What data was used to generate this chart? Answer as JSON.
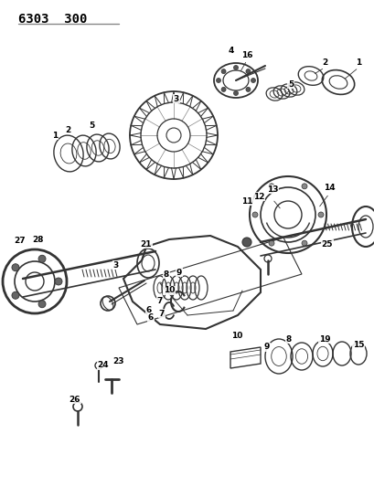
{
  "title": "6303  300",
  "bg_color": "#ffffff",
  "fig_width": 4.1,
  "fig_height": 5.33,
  "dpi": 100,
  "underline_color": "#888888",
  "line_color": "#333333",
  "label_fontsize": 6.5,
  "title_fontsize": 10
}
